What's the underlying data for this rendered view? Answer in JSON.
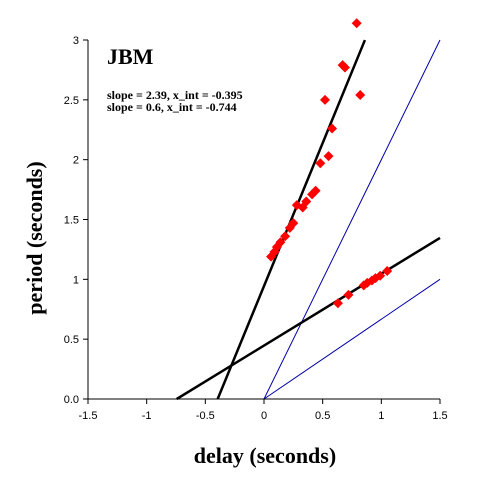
{
  "chart_data": {
    "type": "scatter",
    "title": "JBM",
    "xlabel": "delay (seconds)",
    "ylabel": "period (seconds)",
    "xlim": [
      -1.5,
      1.5
    ],
    "ylim": [
      0,
      3
    ],
    "xticks": [
      "-1.5",
      "-1",
      "-0.5",
      "0",
      "0.5",
      "1",
      "1.5"
    ],
    "yticks": [
      "0.0",
      "0.5",
      "1",
      "1.5",
      "2",
      "2.5",
      "3"
    ],
    "grid": false,
    "annotations": [
      "slope = 2.39, x_int = -0.395",
      "slope = 0.6, x_int = -0.744"
    ],
    "point_color": "#ff0000",
    "series": [
      {
        "values": [
          {
            "x": 0.06,
            "y": 1.19
          },
          {
            "x": 0.09,
            "y": 1.23
          },
          {
            "x": 0.11,
            "y": 1.27
          },
          {
            "x": 0.14,
            "y": 1.31
          },
          {
            "x": 0.18,
            "y": 1.36
          },
          {
            "x": 0.22,
            "y": 1.43
          },
          {
            "x": 0.25,
            "y": 1.47
          },
          {
            "x": 0.28,
            "y": 1.62
          },
          {
            "x": 0.33,
            "y": 1.6
          },
          {
            "x": 0.36,
            "y": 1.65
          },
          {
            "x": 0.41,
            "y": 1.71
          },
          {
            "x": 0.44,
            "y": 1.74
          },
          {
            "x": 0.48,
            "y": 1.97
          },
          {
            "x": 0.55,
            "y": 2.03
          },
          {
            "x": 0.58,
            "y": 2.26
          },
          {
            "x": 0.52,
            "y": 2.5
          },
          {
            "x": 0.67,
            "y": 2.79
          },
          {
            "x": 0.69,
            "y": 2.77
          },
          {
            "x": 0.82,
            "y": 2.54
          },
          {
            "x": 0.79,
            "y": 3.14
          }
        ]
      },
      {
        "values": [
          {
            "x": 0.63,
            "y": 0.8
          },
          {
            "x": 0.72,
            "y": 0.87
          },
          {
            "x": 0.85,
            "y": 0.95
          },
          {
            "x": 0.88,
            "y": 0.97
          },
          {
            "x": 0.92,
            "y": 0.99
          },
          {
            "x": 0.95,
            "y": 1.01
          },
          {
            "x": 0.99,
            "y": 1.03
          },
          {
            "x": 1.05,
            "y": 1.07
          }
        ]
      }
    ],
    "fit_lines": [
      {
        "slope": 2.39,
        "x_int": -0.395,
        "x_range": [
          -0.395,
          0.86
        ],
        "color": "#000000"
      },
      {
        "slope": 0.6,
        "x_int": -0.744,
        "x_range": [
          -0.744,
          1.5
        ],
        "color": "#000000"
      }
    ],
    "reference_lines": [
      {
        "slope": 2,
        "x_int": 0,
        "x_range": [
          0,
          1.5
        ],
        "color": "#0000aa"
      },
      {
        "slope": 0.6667,
        "x_int": 0,
        "x_range": [
          0,
          1.5
        ],
        "color": "#0000aa"
      }
    ]
  }
}
